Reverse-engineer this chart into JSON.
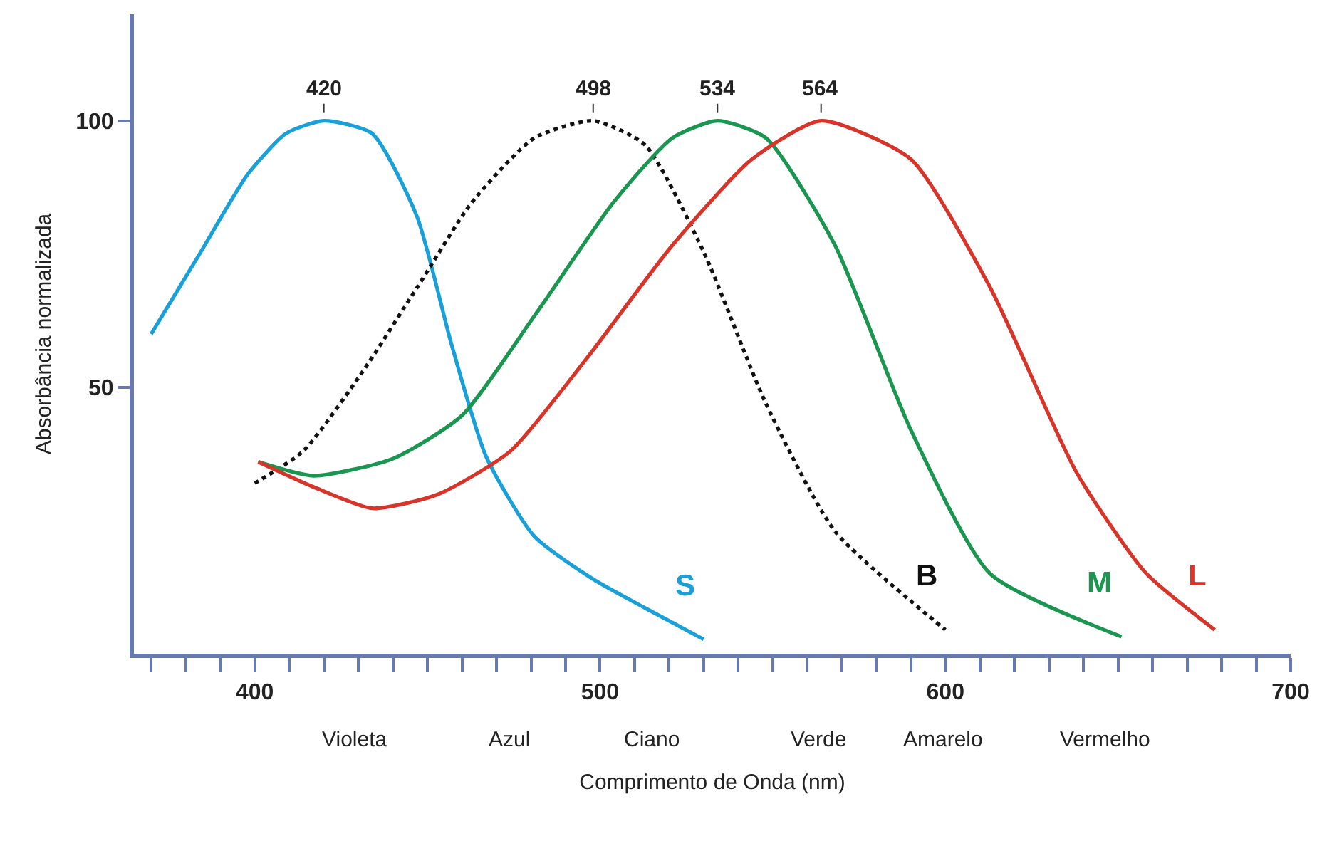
{
  "chart_data": {
    "type": "line",
    "xlabel": "Comprimento de Onda (nm)",
    "ylabel": "Absorbância normalizada",
    "xlim": [
      365,
      700
    ],
    "ylim": [
      0,
      120
    ],
    "xticks": [
      {
        "value": 370,
        "label": null
      },
      {
        "value": 380,
        "label": null
      },
      {
        "value": 390,
        "label": null
      },
      400,
      {
        "value": 410,
        "label": null
      },
      {
        "value": 420,
        "label": null
      },
      {
        "value": 430,
        "label": null
      },
      {
        "value": 440,
        "label": null
      },
      {
        "value": 450,
        "label": null
      },
      {
        "value": 460,
        "label": null
      },
      {
        "value": 470,
        "label": null
      },
      {
        "value": 480,
        "label": null
      },
      {
        "value": 490,
        "label": null
      },
      500,
      {
        "value": 510,
        "label": null
      },
      {
        "value": 520,
        "label": null
      },
      {
        "value": 530,
        "label": null
      },
      {
        "value": 540,
        "label": null
      },
      {
        "value": 550,
        "label": null
      },
      {
        "value": 560,
        "label": null
      },
      {
        "value": 570,
        "label": null
      },
      {
        "value": 580,
        "label": null
      },
      {
        "value": 590,
        "label": null
      },
      600,
      {
        "value": 610,
        "label": null
      },
      {
        "value": 620,
        "label": null
      },
      {
        "value": 630,
        "label": null
      },
      {
        "value": 640,
        "label": null
      },
      {
        "value": 650,
        "label": null
      },
      {
        "value": 660,
        "label": null
      },
      {
        "value": 670,
        "label": null
      },
      {
        "value": 680,
        "label": null
      },
      {
        "value": 690,
        "label": null
      },
      700
    ],
    "yticks": [
      50,
      100
    ],
    "grid": false,
    "legend": false,
    "marker": "none",
    "series": [
      {
        "name": "S",
        "color": "#1aa0d8",
        "line_style": "solid",
        "x": [
          370,
          384,
          398,
          409,
          420,
          434,
          447,
          457,
          467,
          481,
          498,
          513,
          530
        ],
        "values": [
          60,
          75,
          90,
          97.6,
          100,
          97.6,
          82,
          58,
          37,
          22,
          14,
          8.6,
          2.7
        ]
      },
      {
        "name": "B",
        "color": "#111111",
        "line_style": "dotted",
        "x": [
          400,
          414,
          431,
          447,
          463,
          481,
          498,
          513,
          530,
          548,
          568,
          600
        ],
        "values": [
          32,
          38,
          52.7,
          68.7,
          84.8,
          96.8,
          100,
          95.5,
          75.4,
          47,
          23,
          4.5
        ]
      },
      {
        "name": "M",
        "color": "#1a9650",
        "line_style": "solid",
        "x": [
          401,
          417,
          440,
          460,
          481,
          504,
          521,
          534,
          548,
          568,
          590,
          613,
          651
        ],
        "values": [
          36,
          33.4,
          36.6,
          44.7,
          63.4,
          84.8,
          96.8,
          100,
          96.8,
          76.7,
          42,
          15,
          3.2
        ]
      },
      {
        "name": "L",
        "color": "#d8352a",
        "line_style": "solid",
        "x": [
          401,
          417,
          434,
          453,
          474,
          496,
          521,
          544,
          564,
          590,
          613,
          638,
          658,
          678
        ],
        "values": [
          36,
          31.3,
          27.3,
          29.9,
          38,
          55.3,
          76.7,
          92.8,
          100,
          92.8,
          68.7,
          34,
          15.2,
          4.5
        ]
      }
    ],
    "annotations": [
      {
        "text": "420",
        "x": 420,
        "y": 100
      },
      {
        "text": "498",
        "x": 498,
        "y": 100
      },
      {
        "text": "534",
        "x": 534,
        "y": 100
      },
      {
        "text": "564",
        "x": 564,
        "y": 100
      },
      "Violeta",
      "Azul",
      "Ciano",
      "Verde",
      "Amarelo",
      "Vermelho"
    ]
  }
}
